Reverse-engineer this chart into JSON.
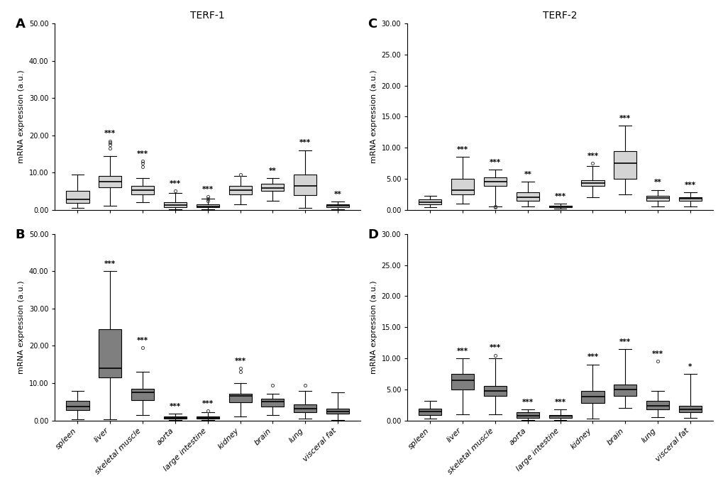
{
  "categories": [
    "spleen",
    "liver",
    "skeletal muscle",
    "aorta",
    "large intestine",
    "kidney",
    "brain",
    "lung",
    "visceral fat"
  ],
  "ylims": {
    "A": [
      0,
      50
    ],
    "B": [
      0,
      50
    ],
    "C": [
      0,
      30
    ],
    "D": [
      0,
      30
    ]
  },
  "yticks": {
    "A": [
      0,
      10,
      20,
      30,
      40,
      50
    ],
    "B": [
      0,
      10,
      20,
      30,
      40,
      50
    ],
    "C": [
      0,
      5,
      10,
      15,
      20,
      25,
      30
    ],
    "D": [
      0,
      5,
      10,
      15,
      20,
      25,
      30
    ]
  },
  "ytick_labels": {
    "A": [
      "0.00",
      "10.00",
      "20.00",
      "30.00",
      "40.00",
      "50.00"
    ],
    "B": [
      "0.00",
      "10.00",
      "20.00",
      "30.00",
      "40.00",
      "50.00"
    ],
    "C": [
      "0.00",
      "5.00",
      "10.00",
      "15.00",
      "20.00",
      "25.00",
      "30.00"
    ],
    "D": [
      "0.00",
      "5.00",
      "10.00",
      "15.00",
      "20.00",
      "25.00",
      "30.00"
    ]
  },
  "ylabel": "mRNA expression (a.u.)",
  "box_facecolor": {
    "A": "#d4d4d4",
    "B": "#7f7f7f",
    "C": "#d4d4d4",
    "D": "#7f7f7f"
  },
  "significance": {
    "A": [
      "",
      "***",
      "***",
      "***",
      "***",
      "",
      "**",
      "***",
      "**"
    ],
    "B": [
      "",
      "***",
      "***",
      "***",
      "***",
      "***",
      "",
      "",
      ""
    ],
    "C": [
      "",
      "***",
      "***",
      "**",
      "***",
      "***",
      "***",
      "**",
      "***"
    ],
    "D": [
      "",
      "***",
      "***",
      "***",
      "***",
      "***",
      "***",
      "***",
      "*"
    ]
  },
  "panels": {
    "A": {
      "whisker_low": [
        0.5,
        1.0,
        2.0,
        0.1,
        0.1,
        1.5,
        2.5,
        0.5,
        0.1
      ],
      "q1": [
        1.8,
        6.0,
        4.2,
        0.8,
        0.7,
        4.2,
        5.0,
        4.0,
        0.7
      ],
      "median": [
        2.8,
        7.5,
        5.2,
        1.3,
        0.9,
        5.2,
        5.8,
        6.5,
        1.0
      ],
      "q3": [
        5.0,
        9.0,
        6.5,
        2.0,
        1.4,
        6.5,
        7.0,
        9.5,
        1.5
      ],
      "whisker_high": [
        9.5,
        14.5,
        8.5,
        4.5,
        3.0,
        9.0,
        8.5,
        16.0,
        2.2
      ],
      "outliers": [
        [],
        [
          16.5,
          17.5,
          18.0,
          18.5
        ],
        [
          11.5,
          12.5,
          13.0
        ],
        [
          5.0
        ],
        [
          2.5,
          3.0,
          3.5
        ],
        [
          9.5
        ],
        [],
        [],
        []
      ]
    },
    "B": {
      "whisker_low": [
        0.3,
        0.3,
        1.5,
        0.1,
        0.1,
        1.0,
        1.5,
        0.5,
        0.2
      ],
      "q1": [
        2.8,
        11.5,
        5.5,
        0.4,
        0.4,
        4.8,
        3.8,
        2.2,
        1.8
      ],
      "median": [
        3.8,
        14.0,
        7.5,
        0.7,
        0.7,
        6.5,
        5.0,
        3.2,
        2.3
      ],
      "q3": [
        5.2,
        24.5,
        8.5,
        1.1,
        1.0,
        7.2,
        5.8,
        4.2,
        3.2
      ],
      "whisker_high": [
        8.0,
        40.0,
        13.0,
        1.8,
        2.2,
        10.0,
        7.2,
        8.0,
        7.5
      ],
      "outliers": [
        [],
        [],
        [
          19.5
        ],
        [],
        [
          2.5
        ],
        [
          13.0,
          14.0
        ],
        [
          9.5
        ],
        [
          9.5
        ],
        []
      ]
    },
    "C": {
      "whisker_low": [
        0.4,
        1.0,
        0.5,
        0.5,
        0.2,
        2.0,
        2.5,
        0.5,
        0.5
      ],
      "q1": [
        0.9,
        2.5,
        3.8,
        1.5,
        0.4,
        3.8,
        5.0,
        1.5,
        1.4
      ],
      "median": [
        1.2,
        3.2,
        4.5,
        2.0,
        0.5,
        4.3,
        7.5,
        1.9,
        1.8
      ],
      "q3": [
        1.7,
        5.0,
        5.2,
        2.8,
        0.7,
        4.8,
        9.5,
        2.3,
        2.0
      ],
      "whisker_high": [
        2.3,
        8.5,
        6.5,
        4.5,
        1.0,
        7.0,
        13.5,
        3.2,
        2.8
      ],
      "outliers": [
        [],
        [],
        [
          0.4,
          0.5
        ],
        [],
        [],
        [
          7.5
        ],
        [],
        [],
        []
      ]
    },
    "D": {
      "whisker_low": [
        0.3,
        1.0,
        1.0,
        0.1,
        0.1,
        0.3,
        2.0,
        0.5,
        0.4
      ],
      "q1": [
        0.9,
        5.0,
        4.0,
        0.4,
        0.4,
        2.8,
        4.0,
        1.8,
        1.3
      ],
      "median": [
        1.4,
        6.5,
        4.8,
        0.8,
        0.7,
        3.8,
        5.0,
        2.3,
        1.8
      ],
      "q3": [
        1.9,
        7.5,
        5.5,
        1.3,
        0.9,
        4.8,
        5.8,
        3.2,
        2.3
      ],
      "whisker_high": [
        3.2,
        10.0,
        10.0,
        1.8,
        1.8,
        9.0,
        11.5,
        4.8,
        7.5
      ],
      "outliers": [
        [],
        [],
        [
          10.5
        ],
        [],
        [],
        [],
        [],
        [
          9.5
        ],
        []
      ]
    }
  },
  "background_color": "#ffffff",
  "sig_fontsize": 7.5,
  "label_fontsize": 8,
  "tick_fontsize": 7,
  "panel_label_fontsize": 13,
  "title_fontsize": 10
}
